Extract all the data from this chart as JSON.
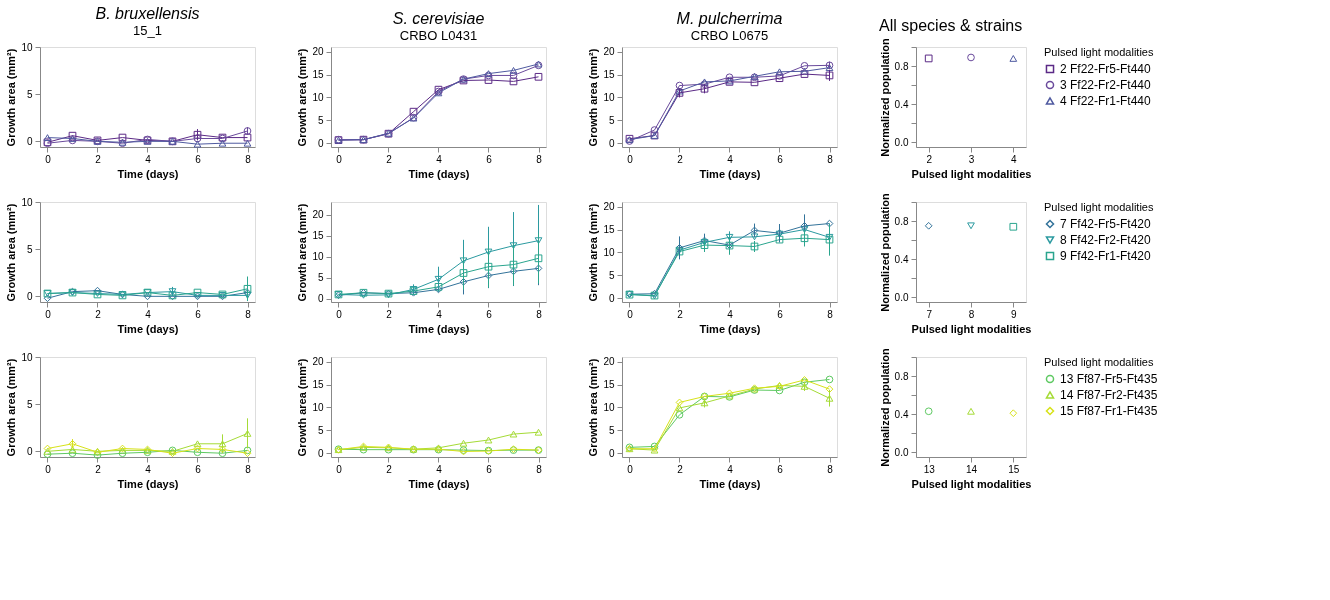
{
  "chart_data": [
    {
      "type": "line",
      "title": "B. bruxellensis",
      "subtitle": "15_1",
      "xlabel": "Time (days)",
      "ylabel": "Growth area (mm²)",
      "x": [
        0,
        1,
        2,
        3,
        4,
        5,
        6,
        7,
        8
      ],
      "xlim": [
        -0.3,
        8.3
      ],
      "xticks": [
        0,
        2,
        4,
        6,
        8
      ],
      "ylim": [
        -0.6,
        10
      ],
      "yticks": [
        0,
        5,
        10
      ],
      "grid": false,
      "legend": false,
      "line_style": "solid",
      "series": [
        {
          "color": "#5b2a86",
          "marker": "square",
          "values": [
            -0.1,
            0.6,
            0.1,
            0.4,
            0.1,
            0,
            0.7,
            0.4,
            0.4
          ],
          "errors": [
            null,
            null,
            null,
            null,
            null,
            null,
            0.6,
            null,
            null
          ]
        },
        {
          "color": "#6a4a9c",
          "marker": "circle",
          "values": [
            -0.2,
            0.1,
            0,
            -0.2,
            0.2,
            0,
            0.3,
            0.3,
            1.1
          ],
          "errors": [
            null,
            null,
            null,
            null,
            null,
            null,
            null,
            null,
            0.4
          ]
        },
        {
          "color": "#4f5aa0",
          "marker": "triangle",
          "values": [
            0.4,
            0.3,
            0,
            -0.1,
            0,
            0,
            -0.3,
            -0.2,
            -0.2
          ]
        }
      ]
    },
    {
      "type": "line",
      "title": "S. cerevisiae",
      "subtitle": "CRBO L0431",
      "xlabel": "Time (days)",
      "ylabel": "Growth area (mm²)",
      "x": [
        0,
        1,
        2,
        3,
        4,
        5,
        6,
        7,
        8
      ],
      "xlim": [
        -0.3,
        8.3
      ],
      "xticks": [
        0,
        2,
        4,
        6,
        8
      ],
      "ylim": [
        -0.8,
        21
      ],
      "yticks": [
        0,
        5,
        10,
        15,
        20
      ],
      "grid": false,
      "legend": false,
      "line_style": "solid",
      "series": [
        {
          "color": "#5b2a86",
          "marker": "square",
          "values": [
            0.7,
            0.8,
            2.1,
            6.9,
            11.7,
            13.7,
            13.8,
            13.5,
            14.5
          ]
        },
        {
          "color": "#6a4a9c",
          "marker": "circle",
          "values": [
            0.8,
            0.8,
            2.1,
            5.6,
            11.3,
            14.0,
            14.8,
            14.8,
            17.0
          ]
        },
        {
          "color": "#4f5aa0",
          "marker": "triangle",
          "values": [
            0.7,
            0.8,
            2.2,
            5.5,
            11.0,
            14.0,
            15.2,
            15.9,
            17.3
          ]
        }
      ]
    },
    {
      "type": "line",
      "title": "M. pulcherrima",
      "subtitle": "CRBO L0675",
      "xlabel": "Time (days)",
      "ylabel": "Growth area (mm²)",
      "x": [
        0,
        1,
        2,
        3,
        4,
        5,
        6,
        7,
        8
      ],
      "xlim": [
        -0.3,
        8.3
      ],
      "xticks": [
        0,
        2,
        4,
        6,
        8
      ],
      "ylim": [
        -0.8,
        21
      ],
      "yticks": [
        0,
        5,
        10,
        15,
        20
      ],
      "grid": false,
      "legend": false,
      "line_style": "solid",
      "series": [
        {
          "color": "#5b2a86",
          "marker": "square",
          "values": [
            1.0,
            1.7,
            11.0,
            11.9,
            13.4,
            13.3,
            14.2,
            15.1,
            14.8
          ],
          "errors": [
            null,
            null,
            1.0,
            1.0,
            null,
            null,
            null,
            null,
            1.2
          ]
        },
        {
          "color": "#6a4a9c",
          "marker": "circle",
          "values": [
            0.5,
            2.9,
            12.6,
            12.9,
            14.4,
            14.4,
            14.7,
            16.9,
            17.0
          ],
          "errors": [
            null,
            null,
            null,
            null,
            null,
            null,
            null,
            null,
            0.8
          ]
        },
        {
          "color": "#4f5aa0",
          "marker": "triangle",
          "values": [
            0.8,
            1.7,
            11.4,
            13.4,
            13.6,
            14.6,
            15.6,
            15.7,
            16.5
          ]
        }
      ]
    },
    {
      "type": "scatter",
      "title": "All species & strains",
      "xlabel": "Pulsed light modalities",
      "ylabel": "Normalized population",
      "legend_title": "Pulsed light modalities",
      "xlim": [
        1.7,
        4.3
      ],
      "xticks": [
        2,
        3,
        4
      ],
      "ylim": [
        -0.05,
        1.0
      ],
      "yticks": [
        {
          "value": 0,
          "label": "0.0"
        },
        {
          "value": 0.2,
          "label": null
        },
        0.4,
        {
          "value": 0.6,
          "label": null
        },
        0.8,
        {
          "value": 1.0,
          "label": null
        }
      ],
      "grid": false,
      "legend": "right",
      "series": [
        {
          "name": "2 Ff22-Fr5-Ft440",
          "color": "#5b2a86",
          "marker": "square",
          "x": [
            2
          ],
          "values": [
            0.88
          ]
        },
        {
          "name": "3 Ff22-Fr2-Ft440",
          "color": "#6a4a9c",
          "marker": "circle",
          "x": [
            3
          ],
          "values": [
            0.89
          ]
        },
        {
          "name": "4 Ff22-Fr1-Ft440",
          "color": "#4f5aa0",
          "marker": "triangle",
          "x": [
            4
          ],
          "values": [
            0.88
          ]
        }
      ]
    },
    {
      "type": "line",
      "xlabel": "Time (days)",
      "ylabel": "Growth area (mm²)",
      "x": [
        0,
        1,
        2,
        3,
        4,
        5,
        6,
        7,
        8
      ],
      "xlim": [
        -0.3,
        8.3
      ],
      "xticks": [
        0,
        2,
        4,
        6,
        8
      ],
      "ylim": [
        -0.6,
        10
      ],
      "yticks": [
        0,
        5,
        10
      ],
      "grid": false,
      "legend": false,
      "line_style": "solid",
      "series": [
        {
          "color": "#33739a",
          "marker": "diamond",
          "values": [
            -0.2,
            0.5,
            0.6,
            0.2,
            0,
            0,
            0,
            0,
            0.4
          ]
        },
        {
          "color": "#2b9aa0",
          "marker": "triangle-down",
          "values": [
            0.3,
            0.4,
            0.3,
            0.2,
            0.4,
            0.5,
            0.1,
            0.1,
            0.1
          ],
          "errors": [
            null,
            null,
            null,
            null,
            null,
            0.5,
            null,
            null,
            null
          ]
        },
        {
          "color": "#2aa58e",
          "marker": "square",
          "values": [
            0.3,
            0.4,
            0.2,
            0.1,
            0.4,
            0.1,
            0.4,
            0.2,
            0.8
          ],
          "errors": [
            null,
            null,
            null,
            null,
            null,
            null,
            null,
            null,
            1.3
          ]
        }
      ]
    },
    {
      "type": "line",
      "xlabel": "Time (days)",
      "ylabel": "Growth area (mm²)",
      "x": [
        0,
        1,
        2,
        3,
        4,
        5,
        6,
        7,
        8
      ],
      "xlim": [
        -0.3,
        8.3
      ],
      "xticks": [
        0,
        2,
        4,
        6,
        8
      ],
      "ylim": [
        -0.8,
        23
      ],
      "yticks": [
        0,
        5,
        10,
        15,
        20
      ],
      "grid": false,
      "legend": false,
      "line_style": "solid",
      "series": [
        {
          "color": "#33739a",
          "marker": "diamond",
          "values": [
            0.8,
            1.4,
            1.2,
            1.4,
            2.2,
            4.0,
            5.5,
            6.5,
            7.2
          ],
          "errors": [
            null,
            null,
            null,
            null,
            null,
            3.0,
            3.0,
            3.5,
            4.0
          ]
        },
        {
          "color": "#2b9aa0",
          "marker": "triangle-down",
          "values": [
            1.0,
            0.8,
            0.9,
            2.2,
            4.6,
            9.0,
            11.1,
            12.6,
            13.8
          ],
          "errors": [
            null,
            null,
            null,
            1.2,
            3.0,
            5.0,
            6.0,
            8.0,
            8.5
          ]
        },
        {
          "color": "#2aa58e",
          "marker": "square",
          "values": [
            1.0,
            1.4,
            1.2,
            1.8,
            2.8,
            6.1,
            7.6,
            8.1,
            9.6
          ],
          "errors": [
            null,
            null,
            null,
            null,
            null,
            4.0,
            5.0,
            5.0,
            6.0
          ]
        }
      ]
    },
    {
      "type": "line",
      "xlabel": "Time (days)",
      "ylabel": "Growth area (mm²)",
      "x": [
        0,
        1,
        2,
        3,
        4,
        5,
        6,
        7,
        8
      ],
      "xlim": [
        -0.3,
        8.3
      ],
      "xticks": [
        0,
        2,
        4,
        6,
        8
      ],
      "ylim": [
        -0.8,
        21
      ],
      "yticks": [
        0,
        5,
        10,
        15,
        20
      ],
      "grid": false,
      "legend": false,
      "line_style": "solid",
      "series": [
        {
          "color": "#33739a",
          "marker": "diamond",
          "values": [
            0.9,
            1.0,
            11.0,
            12.6,
            11.6,
            14.8,
            14.2,
            15.8,
            16.3
          ],
          "errors": [
            null,
            null,
            2.5,
            1.5,
            null,
            1.5,
            2.0,
            2.5,
            null
          ]
        },
        {
          "color": "#2b9aa0",
          "marker": "triangle-down",
          "values": [
            0.9,
            0.5,
            10.5,
            12.2,
            13.3,
            13.4,
            14.0,
            15.0,
            13.3
          ],
          "errors": [
            null,
            null,
            null,
            null,
            1.3,
            null,
            null,
            null,
            null
          ]
        },
        {
          "color": "#2aa58e",
          "marker": "square",
          "values": [
            0.8,
            0.6,
            10.2,
            11.6,
            11.5,
            11.3,
            12.8,
            13.1,
            12.8
          ],
          "errors": [
            null,
            null,
            null,
            1.5,
            2.0,
            1.2,
            null,
            1.8,
            3.5
          ]
        }
      ]
    },
    {
      "type": "scatter",
      "xlabel": "Pulsed light modalities",
      "ylabel": "Normalized population",
      "legend_title": "Pulsed light modalities",
      "xlim": [
        6.7,
        9.3
      ],
      "xticks": [
        7,
        8,
        9
      ],
      "ylim": [
        -0.05,
        1.0
      ],
      "yticks": [
        {
          "value": 0,
          "label": "0.0"
        },
        {
          "value": 0.2,
          "label": null
        },
        0.4,
        {
          "value": 0.6,
          "label": null
        },
        0.8,
        {
          "value": 1.0,
          "label": null
        }
      ],
      "grid": false,
      "legend": "right",
      "series": [
        {
          "name": "7 Ff42-Fr5-Ft420",
          "color": "#33739a",
          "marker": "diamond",
          "x": [
            7
          ],
          "values": [
            0.75
          ]
        },
        {
          "name": "8 Ff42-Fr2-Ft420",
          "color": "#2b9aa0",
          "marker": "triangle-down",
          "x": [
            8
          ],
          "values": [
            0.75
          ]
        },
        {
          "name": "9 Ff42-Fr1-Ft420",
          "color": "#2aa58e",
          "marker": "square",
          "x": [
            9
          ],
          "values": [
            0.74
          ]
        }
      ]
    },
    {
      "type": "line",
      "xlabel": "Time (days)",
      "ylabel": "Growth area (mm²)",
      "x": [
        0,
        1,
        2,
        3,
        4,
        5,
        6,
        7,
        8
      ],
      "xlim": [
        -0.3,
        8.3
      ],
      "xticks": [
        0,
        2,
        4,
        6,
        8
      ],
      "ylim": [
        -0.6,
        10
      ],
      "yticks": [
        0,
        5,
        10
      ],
      "grid": false,
      "legend": false,
      "line_style": "solid",
      "series": [
        {
          "color": "#5ec962",
          "marker": "circle",
          "values": [
            -0.3,
            -0.2,
            -0.4,
            -0.2,
            -0.1,
            0.1,
            -0.1,
            -0.2,
            0.1
          ]
        },
        {
          "color": "#a5db36",
          "marker": "triangle",
          "values": [
            0,
            0.2,
            0,
            0.1,
            0.1,
            0,
            0.8,
            0.8,
            1.9
          ],
          "errors": [
            null,
            null,
            null,
            null,
            null,
            null,
            null,
            1.0,
            1.6
          ]
        },
        {
          "color": "#d7e219",
          "marker": "diamond",
          "values": [
            0.3,
            0.8,
            -0.1,
            0.3,
            0.2,
            -0.2,
            0.3,
            0.2,
            -0.2
          ],
          "errors": [
            null,
            0.5,
            null,
            null,
            null,
            null,
            null,
            null,
            null
          ]
        }
      ]
    },
    {
      "type": "line",
      "xlabel": "Time (days)",
      "ylabel": "Growth area (mm²)",
      "x": [
        0,
        1,
        2,
        3,
        4,
        5,
        6,
        7,
        8
      ],
      "xlim": [
        -0.3,
        8.3
      ],
      "xticks": [
        0,
        2,
        4,
        6,
        8
      ],
      "ylim": [
        -0.8,
        21
      ],
      "yticks": [
        0,
        5,
        10,
        15,
        20
      ],
      "grid": false,
      "legend": false,
      "line_style": "solid",
      "series": [
        {
          "color": "#5ec962",
          "marker": "circle",
          "values": [
            0.9,
            0.8,
            0.8,
            0.8,
            0.8,
            0.7,
            0.6,
            0.7,
            0.7
          ]
        },
        {
          "color": "#a5db36",
          "marker": "triangle",
          "values": [
            0.8,
            1.3,
            1.2,
            0.9,
            1.2,
            2.2,
            2.9,
            4.2,
            4.6
          ]
        },
        {
          "color": "#d7e219",
          "marker": "diamond",
          "values": [
            0.8,
            1.5,
            1.3,
            0.9,
            0.9,
            0.4,
            0.5,
            0.9,
            0.7
          ]
        }
      ]
    },
    {
      "type": "line",
      "xlabel": "Time (days)",
      "ylabel": "Growth area (mm²)",
      "x": [
        0,
        1,
        2,
        3,
        4,
        5,
        6,
        7,
        8
      ],
      "xlim": [
        -0.3,
        8.3
      ],
      "xticks": [
        0,
        2,
        4,
        6,
        8
      ],
      "ylim": [
        -0.8,
        21
      ],
      "yticks": [
        0,
        5,
        10,
        15,
        20
      ],
      "grid": false,
      "legend": false,
      "line_style": "solid",
      "series": [
        {
          "color": "#5ec962",
          "marker": "circle",
          "values": [
            1.3,
            1.5,
            8.4,
            12.4,
            12.3,
            13.8,
            13.7,
            15.5,
            16.1
          ]
        },
        {
          "color": "#a5db36",
          "marker": "triangle",
          "values": [
            1.0,
            0.7,
            9.9,
            11.0,
            12.5,
            14.0,
            14.8,
            14.6,
            12.0
          ],
          "errors": [
            null,
            null,
            null,
            1.0,
            null,
            null,
            null,
            1.0,
            1.8
          ]
        },
        {
          "color": "#d7e219",
          "marker": "diamond",
          "values": [
            1.0,
            1.0,
            11.1,
            12.4,
            13.1,
            14.2,
            14.6,
            16.0,
            14.0
          ]
        }
      ]
    },
    {
      "type": "scatter",
      "xlabel": "Pulsed light modalities",
      "ylabel": "Normalized population",
      "legend_title": "Pulsed light modalities",
      "xlim": [
        12.7,
        15.3
      ],
      "xticks": [
        13,
        14,
        15
      ],
      "ylim": [
        -0.05,
        1.0
      ],
      "yticks": [
        {
          "value": 0,
          "label": "0.0"
        },
        {
          "value": 0.2,
          "label": null
        },
        0.4,
        {
          "value": 0.6,
          "label": null
        },
        0.8,
        {
          "value": 1.0,
          "label": null
        }
      ],
      "grid": false,
      "legend": "top right",
      "series": [
        {
          "name": "13 Ff87-Fr5-Ft435",
          "color": "#5ec962",
          "marker": "circle",
          "x": [
            13
          ],
          "values": [
            0.43
          ]
        },
        {
          "name": "14 Ff87-Fr2-Ft435",
          "color": "#a5db36",
          "marker": "triangle",
          "x": [
            14
          ],
          "values": [
            0.43
          ]
        },
        {
          "name": "15 Ff87-Fr1-Ft435",
          "color": "#d7e219",
          "marker": "diamond",
          "x": [
            15
          ],
          "values": [
            0.41
          ]
        }
      ]
    }
  ]
}
